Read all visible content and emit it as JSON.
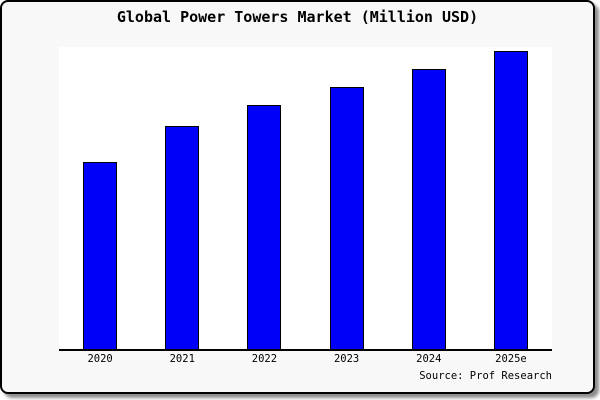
{
  "window": {
    "background_color": "#f8f8f8",
    "border_color": "#000000",
    "canvas_color": "#ffffff"
  },
  "title": "Global Power Towers Market (Million USD)",
  "source_note": "Source: Prof Research",
  "chart_data": {
    "type": "bar",
    "title": "Global Power Towers Market (Million USD)",
    "categories": [
      "2020",
      "2021",
      "2022",
      "2023",
      "2024",
      "2025e"
    ],
    "values": [
      63,
      75,
      82,
      88,
      94,
      100
    ],
    "values_note": "relative heights estimated from pixels; chart displays no y-axis scale, gridlines or data labels",
    "xlabel": "",
    "ylabel": "",
    "ylim": [
      0,
      101.5
    ],
    "grid": false,
    "legend": null,
    "y_axis_visible": false,
    "x_axis_line": true,
    "bar_color": "#0000f8",
    "bar_border_color": "#000000",
    "plot_background": "#ffffff",
    "annotations": [
      "Source: Prof Research"
    ]
  }
}
